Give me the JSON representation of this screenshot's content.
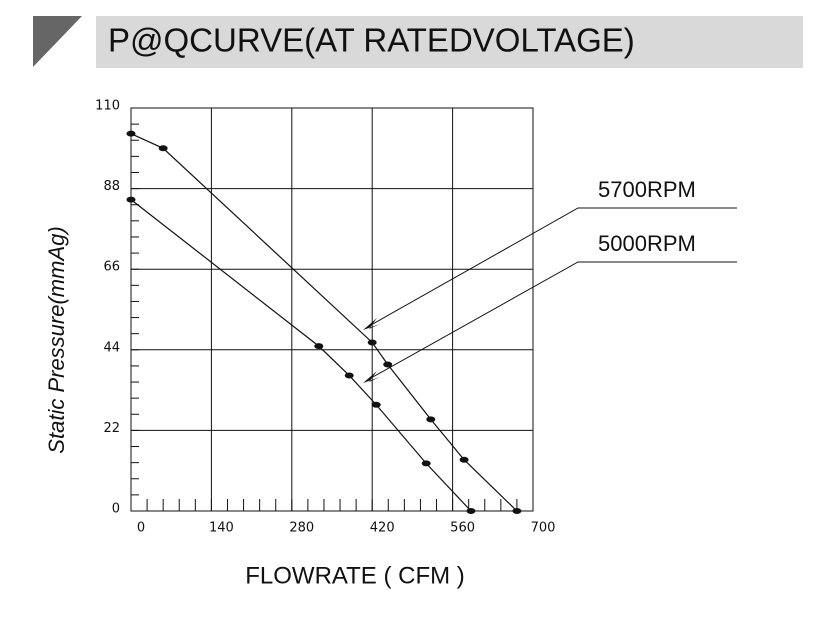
{
  "chart_data": {
    "type": "line",
    "title": "P@QCURVE(AT RATEDVOLTAGE)",
    "y_label": "Static Pressure(mmAg)",
    "x_label": "FLOWRATE ( CFM )",
    "xlim": [
      0,
      700
    ],
    "xticks": [
      0,
      140,
      280,
      420,
      560,
      700
    ],
    "ylim": [
      0,
      110
    ],
    "yticks": [
      0,
      22,
      44,
      66,
      88,
      110
    ],
    "grid": true,
    "series": [
      {
        "name": "5700RPM",
        "color": "#111111",
        "x": [
          0,
          56,
          420,
          447,
          522,
          580,
          672
        ],
        "values": [
          103,
          99,
          46,
          40,
          25,
          14,
          0
        ]
      },
      {
        "name": "5000RPM",
        "color": "#111111",
        "x": [
          0,
          327,
          380,
          427,
          514,
          592
        ],
        "values": [
          85,
          45,
          37,
          29,
          13,
          0
        ]
      }
    ]
  }
}
